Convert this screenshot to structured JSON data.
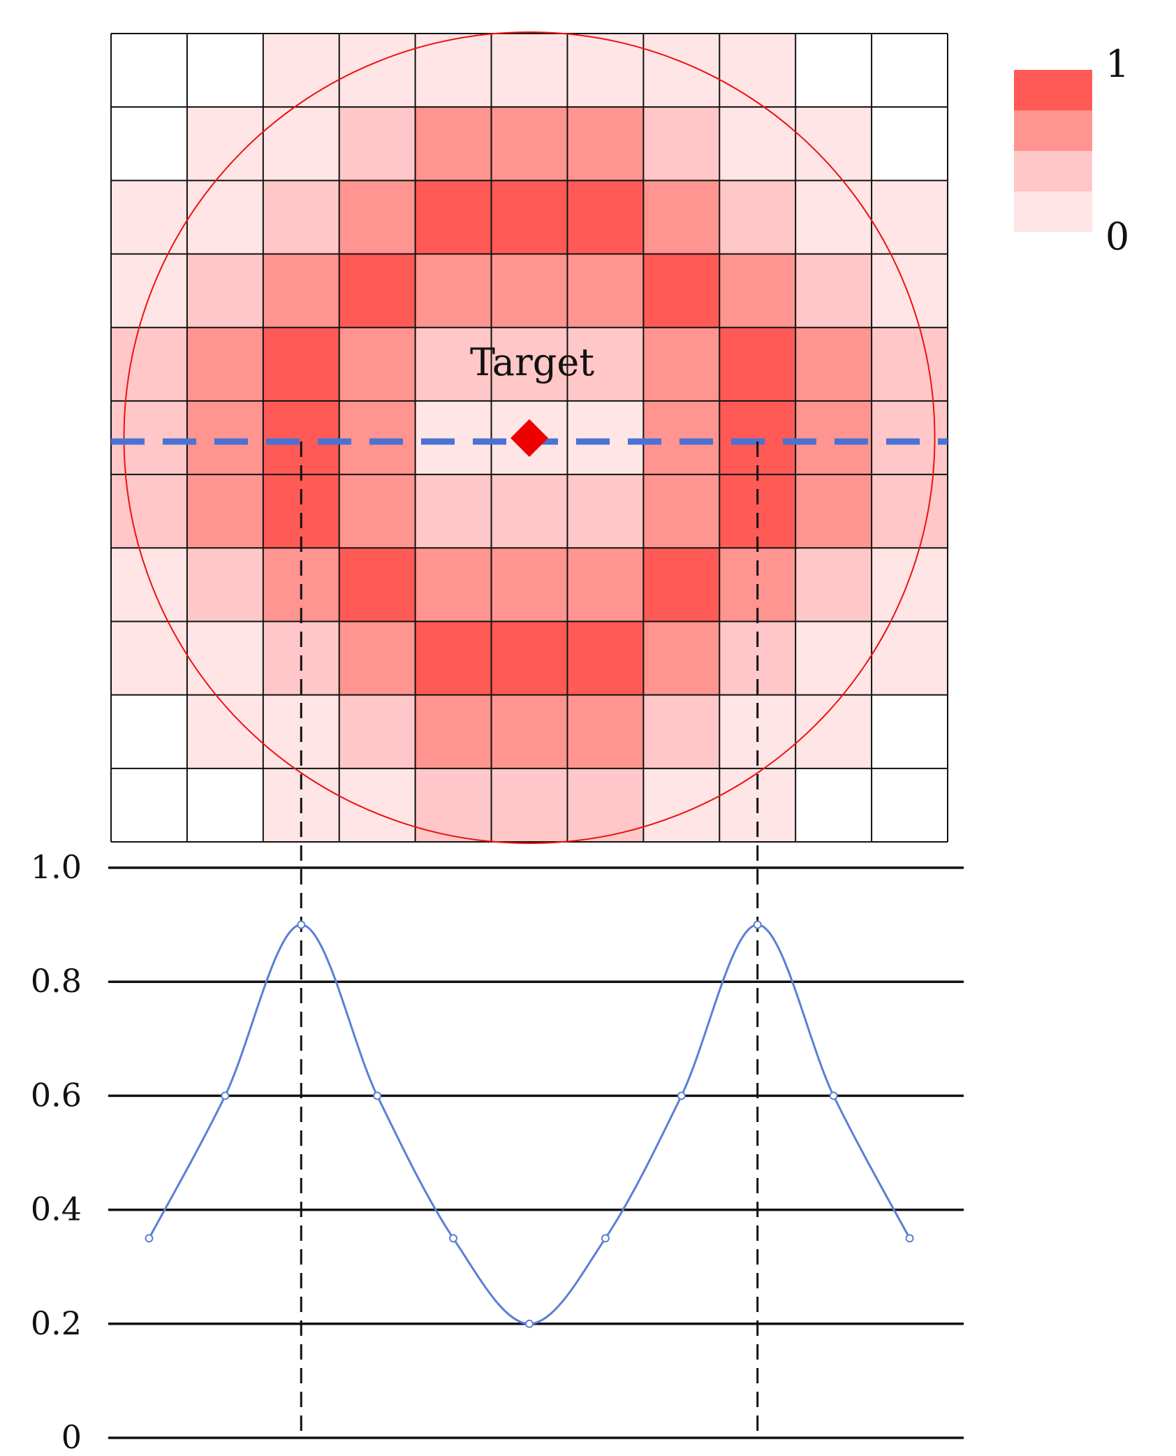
{
  "colors": {
    "levels": [
      "#ffffff",
      "#ffe5e5",
      "#ffc7c7",
      "#ff9490",
      "#ff5a55"
    ],
    "grid_line": "#111111",
    "circle": "#ee1111",
    "marker": "#ee0000",
    "scanline": "#4a72d2",
    "curve": "#5a7fd6",
    "guide": "#111111",
    "axis_line": "#111111"
  },
  "heatmap": {
    "rows": 11,
    "cols": 11,
    "levels": [
      [
        0,
        0,
        1,
        1,
        1,
        1,
        1,
        1,
        1,
        0,
        0
      ],
      [
        0,
        1,
        1,
        2,
        3,
        3,
        3,
        2,
        1,
        1,
        0
      ],
      [
        1,
        1,
        2,
        3,
        4,
        4,
        4,
        3,
        2,
        1,
        1
      ],
      [
        1,
        2,
        3,
        4,
        3,
        3,
        3,
        4,
        3,
        2,
        1
      ],
      [
        2,
        3,
        4,
        3,
        2,
        2,
        2,
        3,
        4,
        3,
        2
      ],
      [
        2,
        3,
        4,
        3,
        1,
        1,
        1,
        3,
        4,
        3,
        2
      ],
      [
        2,
        3,
        4,
        3,
        2,
        2,
        2,
        3,
        4,
        3,
        2
      ],
      [
        1,
        2,
        3,
        4,
        3,
        3,
        3,
        4,
        3,
        2,
        1
      ],
      [
        1,
        1,
        2,
        3,
        4,
        4,
        4,
        3,
        2,
        1,
        1
      ],
      [
        0,
        1,
        1,
        2,
        3,
        3,
        3,
        2,
        1,
        1,
        0
      ],
      [
        0,
        0,
        1,
        1,
        2,
        2,
        2,
        1,
        1,
        0,
        0
      ]
    ],
    "target_label": "Target",
    "circle_icon": "circle-outline",
    "marker_icon": "diamond-icon"
  },
  "legend": {
    "max_label": "1",
    "min_label": "0",
    "levels_top_to_bottom": [
      4,
      3,
      2,
      1
    ]
  },
  "chart_data": {
    "type": "line",
    "x": [
      0.5,
      1.5,
      2.5,
      3.5,
      4.5,
      5.5,
      6.5,
      7.5,
      8.5,
      9.5,
      10.5
    ],
    "values": [
      0.35,
      0.6,
      0.9,
      0.6,
      0.35,
      0.2,
      0.35,
      0.6,
      0.9,
      0.6,
      0.35
    ],
    "ylim": [
      0,
      1.0
    ],
    "xlim": [
      0,
      11
    ],
    "yticks": [
      "0",
      "0.2",
      "0.4",
      "0.6",
      "0.8",
      "1.0"
    ],
    "peaks_x": [
      2.5,
      8.5
    ],
    "grid": true,
    "title": "",
    "xlabel": "",
    "ylabel": ""
  }
}
